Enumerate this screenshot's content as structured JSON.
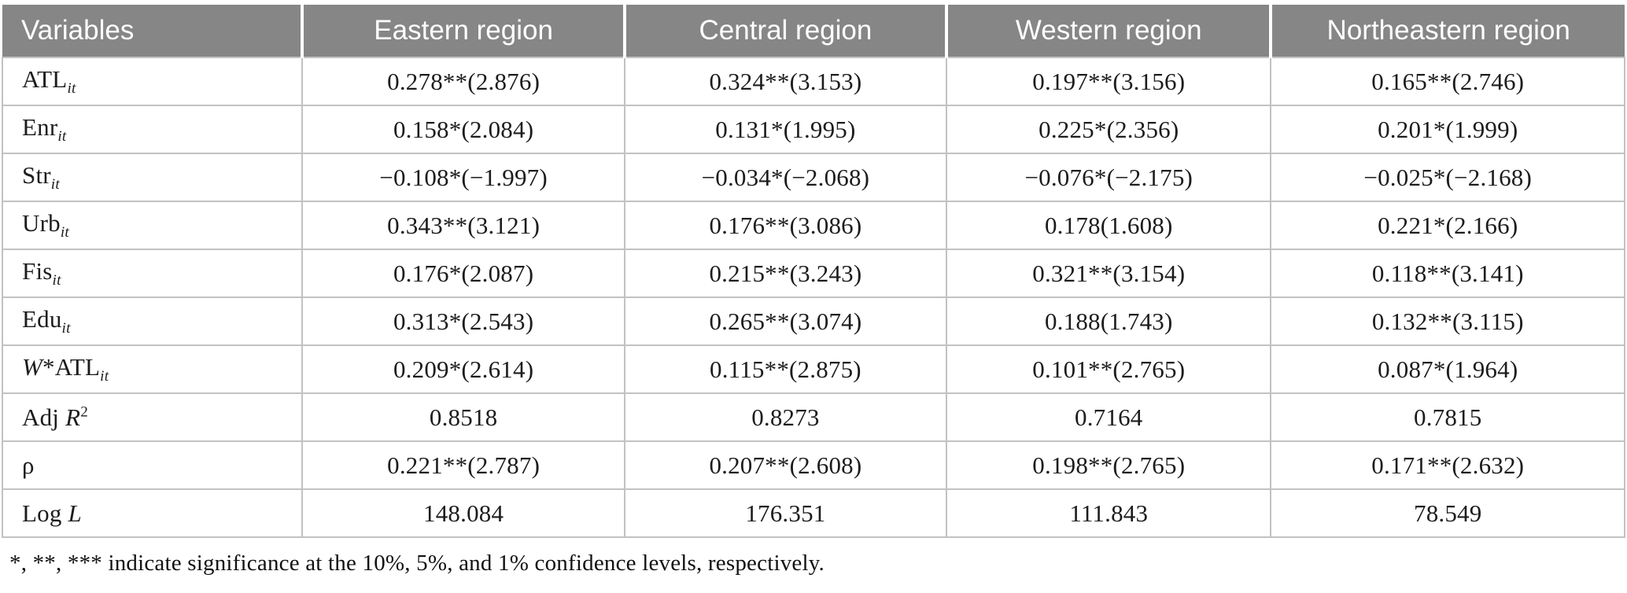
{
  "colors": {
    "header_bg": "#868686",
    "header_text": "#ffffff",
    "grid": "#c2c2c2"
  },
  "table": {
    "columns": [
      "Variables",
      "Eastern region",
      "Central region",
      "Western region",
      "Northeastern region"
    ],
    "rows": [
      {
        "label_parts": [
          {
            "t": "ATL"
          },
          {
            "t": "it",
            "s": "subi"
          }
        ],
        "values": [
          "0.278**(2.876)",
          "0.324**(3.153)",
          "0.197**(3.156)",
          "0.165**(2.746)"
        ]
      },
      {
        "label_parts": [
          {
            "t": "Enr"
          },
          {
            "t": "it",
            "s": "subi"
          }
        ],
        "values": [
          "0.158*(2.084)",
          "0.131*(1.995)",
          "0.225*(2.356)",
          "0.201*(1.999)"
        ]
      },
      {
        "label_parts": [
          {
            "t": "Str"
          },
          {
            "t": "it",
            "s": "subi"
          }
        ],
        "values": [
          "−0.108*(−1.997)",
          "−0.034*(−2.068)",
          "−0.076*(−2.175)",
          "−0.025*(−2.168)"
        ]
      },
      {
        "label_parts": [
          {
            "t": "Urb"
          },
          {
            "t": "it",
            "s": "subi"
          }
        ],
        "values": [
          "0.343**(3.121)",
          "0.176**(3.086)",
          "0.178(1.608)",
          "0.221*(2.166)"
        ]
      },
      {
        "label_parts": [
          {
            "t": "Fis"
          },
          {
            "t": "it",
            "s": "subi"
          }
        ],
        "values": [
          "0.176*(2.087)",
          "0.215**(3.243)",
          "0.321**(3.154)",
          "0.118**(3.141)"
        ]
      },
      {
        "label_parts": [
          {
            "t": "Edu"
          },
          {
            "t": "it",
            "s": "subi"
          }
        ],
        "values": [
          "0.313*(2.543)",
          "0.265**(3.074)",
          "0.188(1.743)",
          "0.132**(3.115)"
        ]
      },
      {
        "label_parts": [
          {
            "t": "W",
            "s": "i"
          },
          {
            "t": "*ATL"
          },
          {
            "t": "it",
            "s": "subi"
          }
        ],
        "values": [
          "0.209*(2.614)",
          "0.115**(2.875)",
          "0.101**(2.765)",
          "0.087*(1.964)"
        ]
      },
      {
        "label_parts": [
          {
            "t": "Adj "
          },
          {
            "t": "R",
            "s": "i"
          },
          {
            "t": "2",
            "s": "sup"
          }
        ],
        "values": [
          "0.8518",
          "0.8273",
          "0.7164",
          "0.7815"
        ]
      },
      {
        "label_parts": [
          {
            "t": "ρ"
          }
        ],
        "values": [
          "0.221**(2.787)",
          "0.207**(2.608)",
          "0.198**(2.765)",
          "0.171**(2.632)"
        ]
      },
      {
        "label_parts": [
          {
            "t": "Log "
          },
          {
            "t": "L",
            "s": "i"
          }
        ],
        "values": [
          "148.084",
          "176.351",
          "111.843",
          "78.549"
        ]
      }
    ]
  },
  "footnote": "*, **, *** indicate significance at the 10%, 5%, and 1% confidence levels, respectively."
}
